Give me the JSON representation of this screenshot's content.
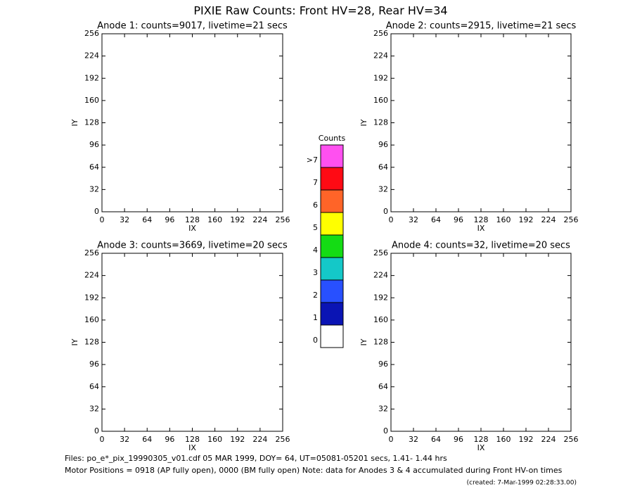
{
  "title": "PIXIE Raw Counts:  Front HV=28, Rear HV=34",
  "chart_data": [
    {
      "type": "scatter",
      "title": "Anode 1: counts=9017, livetime=21 secs",
      "xlabel": "IX",
      "ylabel": "IY",
      "xlim": [
        0,
        256
      ],
      "ylim": [
        0,
        256
      ],
      "xticks": [
        0,
        32,
        64,
        96,
        128,
        160,
        192,
        224,
        256
      ],
      "yticks": [
        0,
        32,
        64,
        96,
        128,
        160,
        192,
        224,
        256
      ]
    },
    {
      "type": "scatter",
      "title": "Anode 2: counts=2915, livetime=21 secs",
      "xlabel": "IX",
      "ylabel": "IY",
      "xlim": [
        0,
        256
      ],
      "ylim": [
        0,
        256
      ],
      "xticks": [
        0,
        32,
        64,
        96,
        128,
        160,
        192,
        224,
        256
      ],
      "yticks": [
        0,
        32,
        64,
        96,
        128,
        160,
        192,
        224,
        256
      ]
    },
    {
      "type": "scatter",
      "title": "Anode 3: counts=3669, livetime=20 secs",
      "xlabel": "IX",
      "ylabel": "IY",
      "xlim": [
        0,
        256
      ],
      "ylim": [
        0,
        256
      ],
      "xticks": [
        0,
        32,
        64,
        96,
        128,
        160,
        192,
        224,
        256
      ],
      "yticks": [
        0,
        32,
        64,
        96,
        128,
        160,
        192,
        224,
        256
      ]
    },
    {
      "type": "scatter",
      "title": "Anode 4: counts=32, livetime=20 secs",
      "xlabel": "IX",
      "ylabel": "IY",
      "xlim": [
        0,
        256
      ],
      "ylim": [
        0,
        256
      ],
      "xticks": [
        0,
        32,
        64,
        96,
        128,
        160,
        192,
        224,
        256
      ],
      "yticks": [
        0,
        32,
        64,
        96,
        128,
        160,
        192,
        224,
        256
      ]
    }
  ],
  "colorbar": {
    "title": "Counts",
    "levels": [
      {
        "label": "0",
        "color": "#ffffff"
      },
      {
        "label": "1",
        "color": "#0a14b4"
      },
      {
        "label": "2",
        "color": "#2850ff"
      },
      {
        "label": "3",
        "color": "#14c8c8"
      },
      {
        "label": "4",
        "color": "#14dc14"
      },
      {
        "label": "5",
        "color": "#ffff00"
      },
      {
        "label": "6",
        "color": "#ff6428"
      },
      {
        "label": "7",
        "color": "#ff0a14"
      },
      {
        "label": ">7",
        "color": "#ff50f0"
      }
    ]
  },
  "footer": {
    "files": "Files: po_e*_pix_19990305_v01.cdf    05 MAR 1999, DOY= 64, UT=05081-05201 secs,  1.41- 1.44 hrs",
    "motor": "Motor Positions = 0918 (AP fully open), 0000 (BM fully open)    Note: data for Anodes 3 & 4 accumulated during Front HV-on times",
    "created": "(created:  7-Mar-1999 02:28:33.00)"
  }
}
